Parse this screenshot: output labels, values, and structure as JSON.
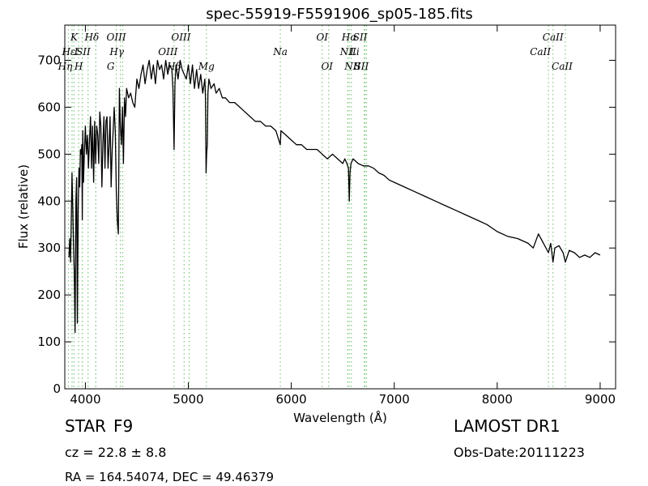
{
  "chart_data": {
    "type": "line",
    "title": "spec-55919-F5591906_sp05-185.fits",
    "xlabel": "Wavelength (Å)",
    "ylabel": "Flux (relative)",
    "xlim": [
      3800,
      9150
    ],
    "ylim": [
      0,
      775
    ],
    "xticks": [
      4000,
      5000,
      6000,
      7000,
      8000,
      9000
    ],
    "yticks": [
      0,
      100,
      200,
      300,
      400,
      500,
      600,
      700
    ],
    "grid": false,
    "series": [
      {
        "line_color": "#000000",
        "x": [
          3840,
          3848,
          3856,
          3862,
          3870,
          3878,
          3885,
          3892,
          3900,
          3908,
          3915,
          3922,
          3930,
          3938,
          3945,
          3952,
          3960,
          3965,
          3970,
          3975,
          3982,
          3990,
          4000,
          4010,
          4020,
          4030,
          4040,
          4050,
          4060,
          4070,
          4080,
          4090,
          4100,
          4110,
          4120,
          4130,
          4140,
          4150,
          4160,
          4170,
          4180,
          4190,
          4200,
          4210,
          4220,
          4230,
          4240,
          4250,
          4260,
          4270,
          4280,
          4290,
          4300,
          4310,
          4320,
          4330,
          4340,
          4350,
          4360,
          4370,
          4380,
          4390,
          4400,
          4420,
          4440,
          4460,
          4480,
          4500,
          4520,
          4540,
          4560,
          4580,
          4600,
          4620,
          4640,
          4660,
          4680,
          4700,
          4720,
          4740,
          4760,
          4780,
          4800,
          4820,
          4840,
          4850,
          4861,
          4870,
          4880,
          4900,
          4920,
          4940,
          4960,
          4980,
          5000,
          5020,
          5040,
          5060,
          5080,
          5100,
          5120,
          5140,
          5160,
          5167,
          5172,
          5178,
          5184,
          5190,
          5200,
          5220,
          5250,
          5270,
          5300,
          5330,
          5360,
          5400,
          5450,
          5500,
          5550,
          5600,
          5650,
          5700,
          5750,
          5800,
          5850,
          5893,
          5900,
          5950,
          6000,
          6050,
          6100,
          6150,
          6200,
          6250,
          6300,
          6350,
          6400,
          6450,
          6500,
          6520,
          6540,
          6555,
          6563,
          6570,
          6580,
          6600,
          6650,
          6700,
          6750,
          6800,
          6850,
          6900,
          6950,
          7000,
          7100,
          7200,
          7300,
          7400,
          7500,
          7600,
          7700,
          7800,
          7900,
          8000,
          8100,
          8200,
          8300,
          8350,
          8400,
          8450,
          8498,
          8520,
          8542,
          8560,
          8600,
          8640,
          8662,
          8700,
          8750,
          8800,
          8850,
          8900,
          8950,
          9000
        ],
        "y": [
          280,
          320,
          270,
          350,
          460,
          380,
          300,
          250,
          120,
          400,
          450,
          140,
          380,
          470,
          430,
          510,
          500,
          520,
          360,
          550,
          440,
          500,
          560,
          500,
          540,
          470,
          530,
          580,
          470,
          560,
          440,
          570,
          480,
          560,
          540,
          480,
          590,
          560,
          430,
          520,
          580,
          470,
          570,
          580,
          470,
          520,
          580,
          430,
          510,
          550,
          600,
          550,
          420,
          360,
          330,
          640,
          560,
          520,
          600,
          480,
          620,
          580,
          640,
          620,
          630,
          610,
          600,
          660,
          640,
          670,
          690,
          650,
          680,
          700,
          660,
          690,
          650,
          700,
          680,
          690,
          660,
          700,
          670,
          690,
          680,
          640,
          510,
          650,
          690,
          660,
          700,
          680,
          670,
          660,
          690,
          650,
          690,
          640,
          680,
          640,
          670,
          630,
          660,
          620,
          460,
          500,
          520,
          630,
          660,
          640,
          650,
          630,
          640,
          620,
          620,
          610,
          610,
          600,
          590,
          580,
          570,
          570,
          560,
          560,
          550,
          520,
          550,
          540,
          530,
          520,
          520,
          510,
          510,
          510,
          500,
          490,
          500,
          490,
          480,
          490,
          480,
          470,
          400,
          460,
          480,
          490,
          480,
          475,
          475,
          470,
          460,
          455,
          445,
          440,
          430,
          420,
          410,
          400,
          390,
          380,
          370,
          360,
          350,
          335,
          325,
          320,
          310,
          300,
          330,
          310,
          290,
          310,
          270,
          300,
          305,
          290,
          270,
          295,
          290,
          280,
          285,
          280,
          290,
          285
        ]
      }
    ],
    "line_labels": [
      {
        "wl": 3835,
        "text": "Hη",
        "row": 3,
        "dx": -4
      },
      {
        "wl": 3870,
        "text": "Hε",
        "row": 2,
        "dx": -4
      },
      {
        "wl": 3890,
        "text": "K",
        "row": 0,
        "dx": 0
      },
      {
        "wl": 3910,
        "text": "I",
        "row": 1,
        "dx": 0
      },
      {
        "wl": 3935,
        "text": "H",
        "row": 3,
        "dx": 0
      },
      {
        "wl": 3980,
        "text": "SII",
        "row": 1,
        "dx": 0
      },
      {
        "wl": 4102,
        "text": "Hδ",
        "row": 0,
        "dx": -5
      },
      {
        "wl": 4305,
        "text": "Hγ",
        "row": 1,
        "dx": 0
      },
      {
        "wl": 4340,
        "text": "G",
        "row": 3,
        "dx": -12
      },
      {
        "wl": 4363,
        "text": "OIII",
        "row": 0,
        "dx": -8
      },
      {
        "wl": 4861,
        "text": "Hβ",
        "row": 3,
        "dx": 0
      },
      {
        "wl": 4959,
        "text": "OIII",
        "row": 2,
        "dx": -20
      },
      {
        "wl": 5007,
        "text": "OIII",
        "row": 0,
        "dx": -10
      },
      {
        "wl": 5175,
        "text": "Mg",
        "row": 3,
        "dx": 0
      },
      {
        "wl": 5893,
        "text": "Na",
        "row": 2,
        "dx": 0
      },
      {
        "wl": 6300,
        "text": "OI",
        "row": 0,
        "dx": 0
      },
      {
        "wl": 6363,
        "text": "OI",
        "row": 3,
        "dx": -2
      },
      {
        "wl": 6548,
        "text": "NII",
        "row": 3,
        "dx": 6
      },
      {
        "wl": 6563,
        "text": "Hα",
        "row": 0,
        "dx": 0
      },
      {
        "wl": 6583,
        "text": "NII",
        "row": 2,
        "dx": -4
      },
      {
        "wl": 6710,
        "text": "Li",
        "row": 2,
        "dx": -12
      },
      {
        "wl": 6716,
        "text": "SII",
        "row": 0,
        "dx": -6
      },
      {
        "wl": 6730,
        "text": "SII",
        "row": 3,
        "dx": -6
      },
      {
        "wl": 8498,
        "text": "CaII",
        "row": 2,
        "dx": -10
      },
      {
        "wl": 8542,
        "text": "CaII",
        "row": 0,
        "dx": 0
      },
      {
        "wl": 8662,
        "text": "CaII",
        "row": 3,
        "dx": -4
      }
    ],
    "line_positions": [
      3835,
      3870,
      3889,
      3934,
      3969,
      3970,
      4026,
      4101,
      4102,
      4300,
      4340,
      4363,
      4861,
      4959,
      5007,
      5175,
      5893,
      6300,
      6363,
      6548,
      6563,
      6583,
      6708,
      6716,
      6731,
      8498,
      8542,
      8662
    ]
  },
  "footer": {
    "class_label": "STAR",
    "subclass": "F9",
    "survey": "LAMOST DR1",
    "redshift": "cz = 22.8 ± 8.8",
    "obs_date": "Obs-Date:20111223",
    "coords": "RA = 164.54074, DEC = 49.46379"
  },
  "colors": {
    "line": "#000000",
    "marker": "#7fc77f",
    "axis": "#000000"
  }
}
